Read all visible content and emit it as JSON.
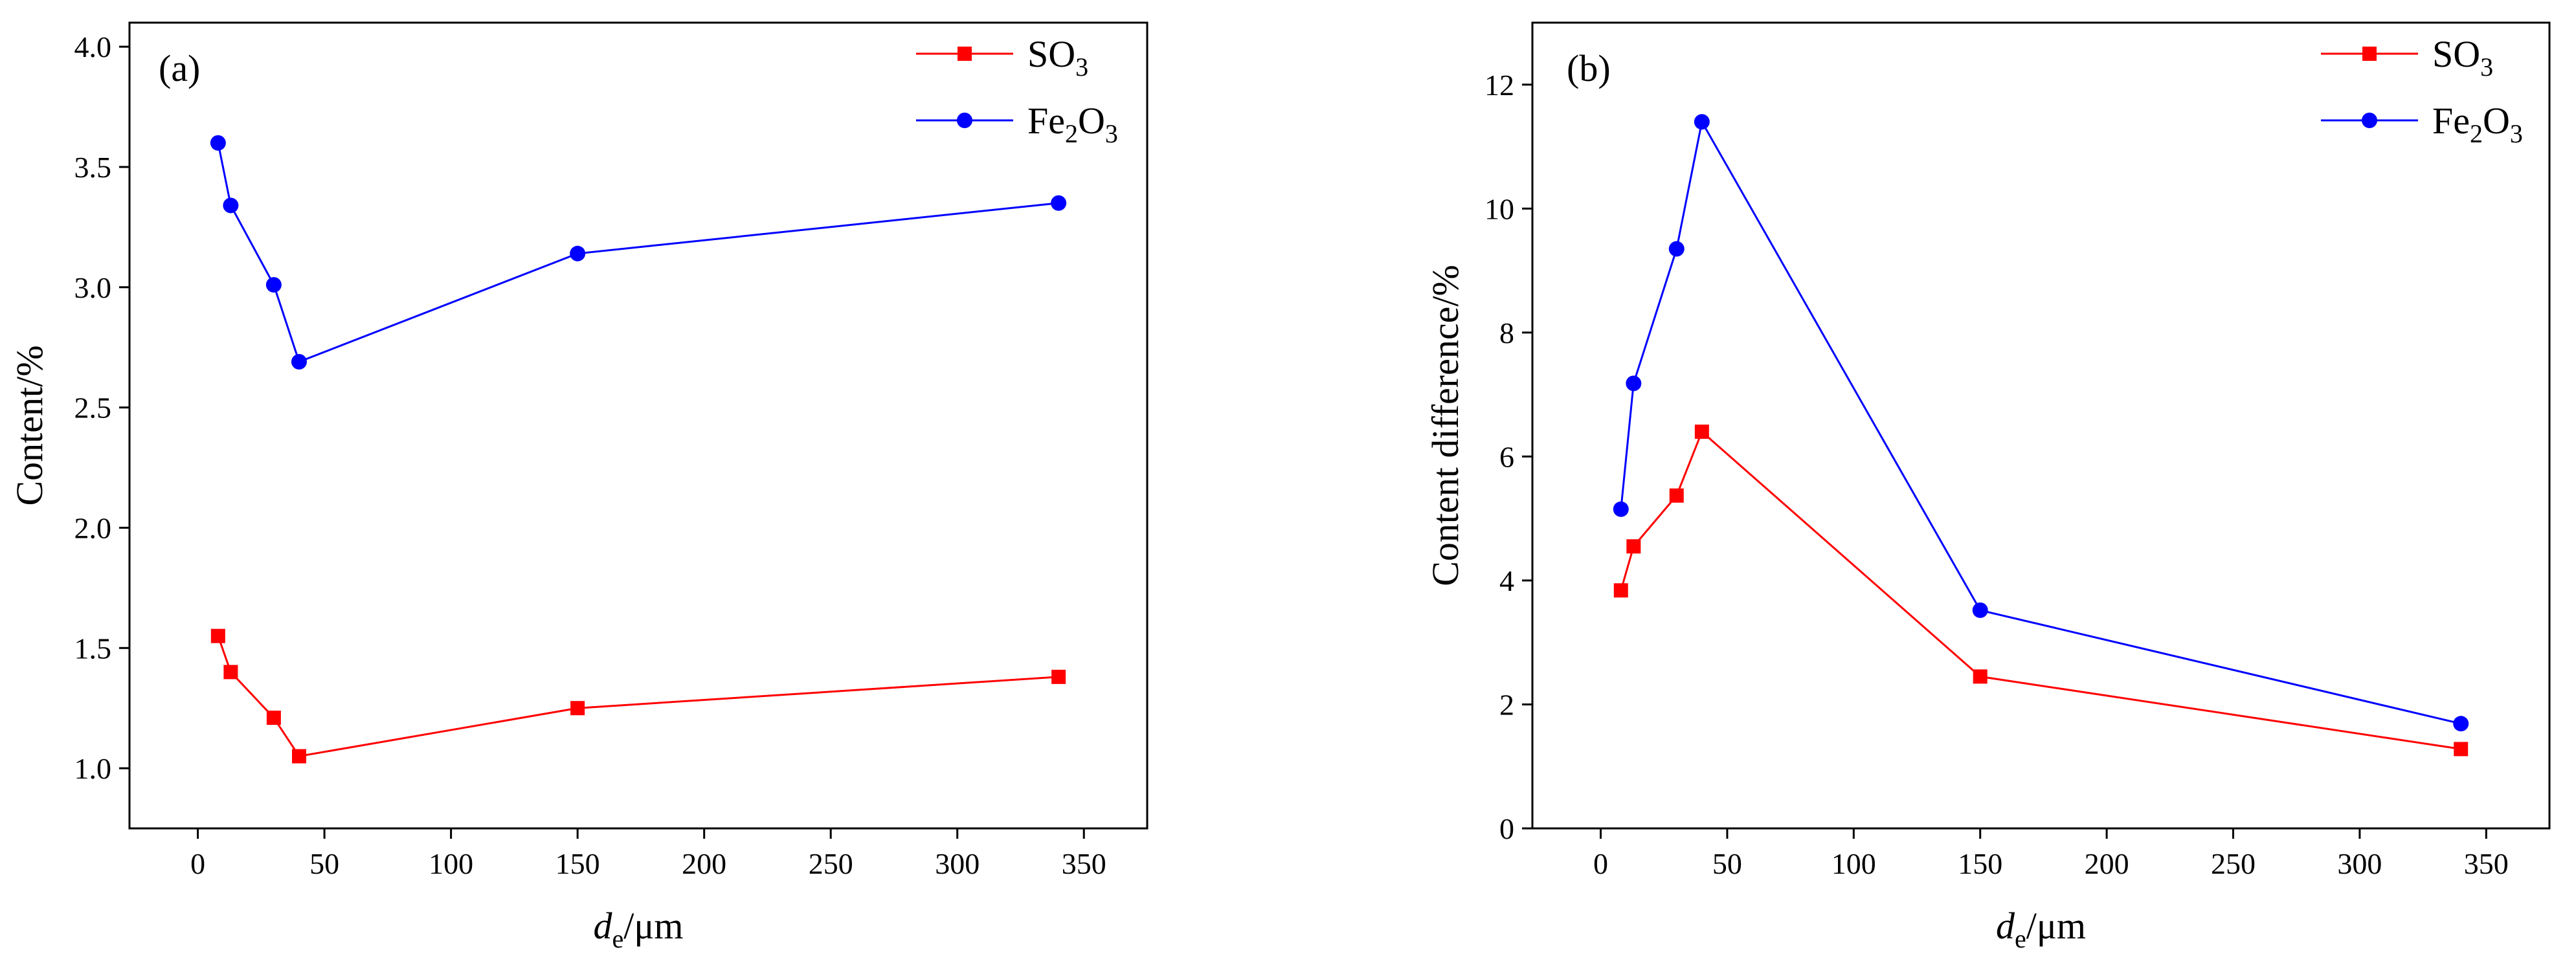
{
  "chart_data": [
    {
      "type": "line",
      "panel_label": "(a)",
      "title": "",
      "xlabel": "d",
      "xlabel_sub": "e",
      "xlabel_unit": "/μm",
      "ylabel": "Content/%",
      "xlim": [
        -27,
        375
      ],
      "ylim": [
        0.75,
        4.1
      ],
      "xticks": [
        0,
        50,
        100,
        150,
        200,
        250,
        300,
        350
      ],
      "xtick_labels": [
        "0",
        "50",
        "100",
        "150",
        "200",
        "250",
        "300",
        "350"
      ],
      "yticks": [
        1.0,
        1.5,
        2.0,
        2.5,
        3.0,
        3.5,
        4.0
      ],
      "ytick_labels": [
        "1.0",
        "1.5",
        "2.0",
        "2.5",
        "3.0",
        "3.5",
        "4.0"
      ],
      "legend_position": "top-right",
      "x": [
        8,
        13,
        30,
        40,
        150,
        340
      ],
      "series": [
        {
          "name": "SO3",
          "label_parts": [
            "SO",
            "3",
            ""
          ],
          "color": "#ff0000",
          "marker": "square",
          "values": [
            1.55,
            1.4,
            1.21,
            1.05,
            1.25,
            1.38
          ]
        },
        {
          "name": "Fe2O3",
          "label_parts": [
            "Fe",
            "2",
            "O",
            "3"
          ],
          "color": "#0000ff",
          "marker": "circle",
          "values": [
            3.6,
            3.34,
            3.01,
            2.69,
            3.14,
            3.35
          ]
        }
      ]
    },
    {
      "type": "line",
      "panel_label": "(b)",
      "title": "",
      "xlabel": "d",
      "xlabel_sub": "e",
      "xlabel_unit": "/μm",
      "ylabel": "Content difference/%",
      "xlim": [
        -27,
        375
      ],
      "ylim": [
        0,
        13
      ],
      "xticks": [
        0,
        50,
        100,
        150,
        200,
        250,
        300,
        350
      ],
      "xtick_labels": [
        "0",
        "50",
        "100",
        "150",
        "200",
        "250",
        "300",
        "350"
      ],
      "yticks": [
        0,
        2,
        4,
        6,
        8,
        10,
        12
      ],
      "ytick_labels": [
        "0",
        "2",
        "4",
        "6",
        "8",
        "10",
        "12"
      ],
      "legend_position": "top-right",
      "x": [
        8,
        13,
        30,
        40,
        150,
        340
      ],
      "series": [
        {
          "name": "SO3",
          "label_parts": [
            "SO",
            "3",
            ""
          ],
          "color": "#ff0000",
          "marker": "square",
          "values": [
            3.84,
            4.55,
            5.37,
            6.4,
            2.45,
            1.28
          ]
        },
        {
          "name": "Fe2O3",
          "label_parts": [
            "Fe",
            "2",
            "O",
            "3"
          ],
          "color": "#0000ff",
          "marker": "circle",
          "values": [
            5.15,
            7.18,
            9.35,
            11.4,
            3.52,
            1.69
          ]
        }
      ]
    }
  ]
}
